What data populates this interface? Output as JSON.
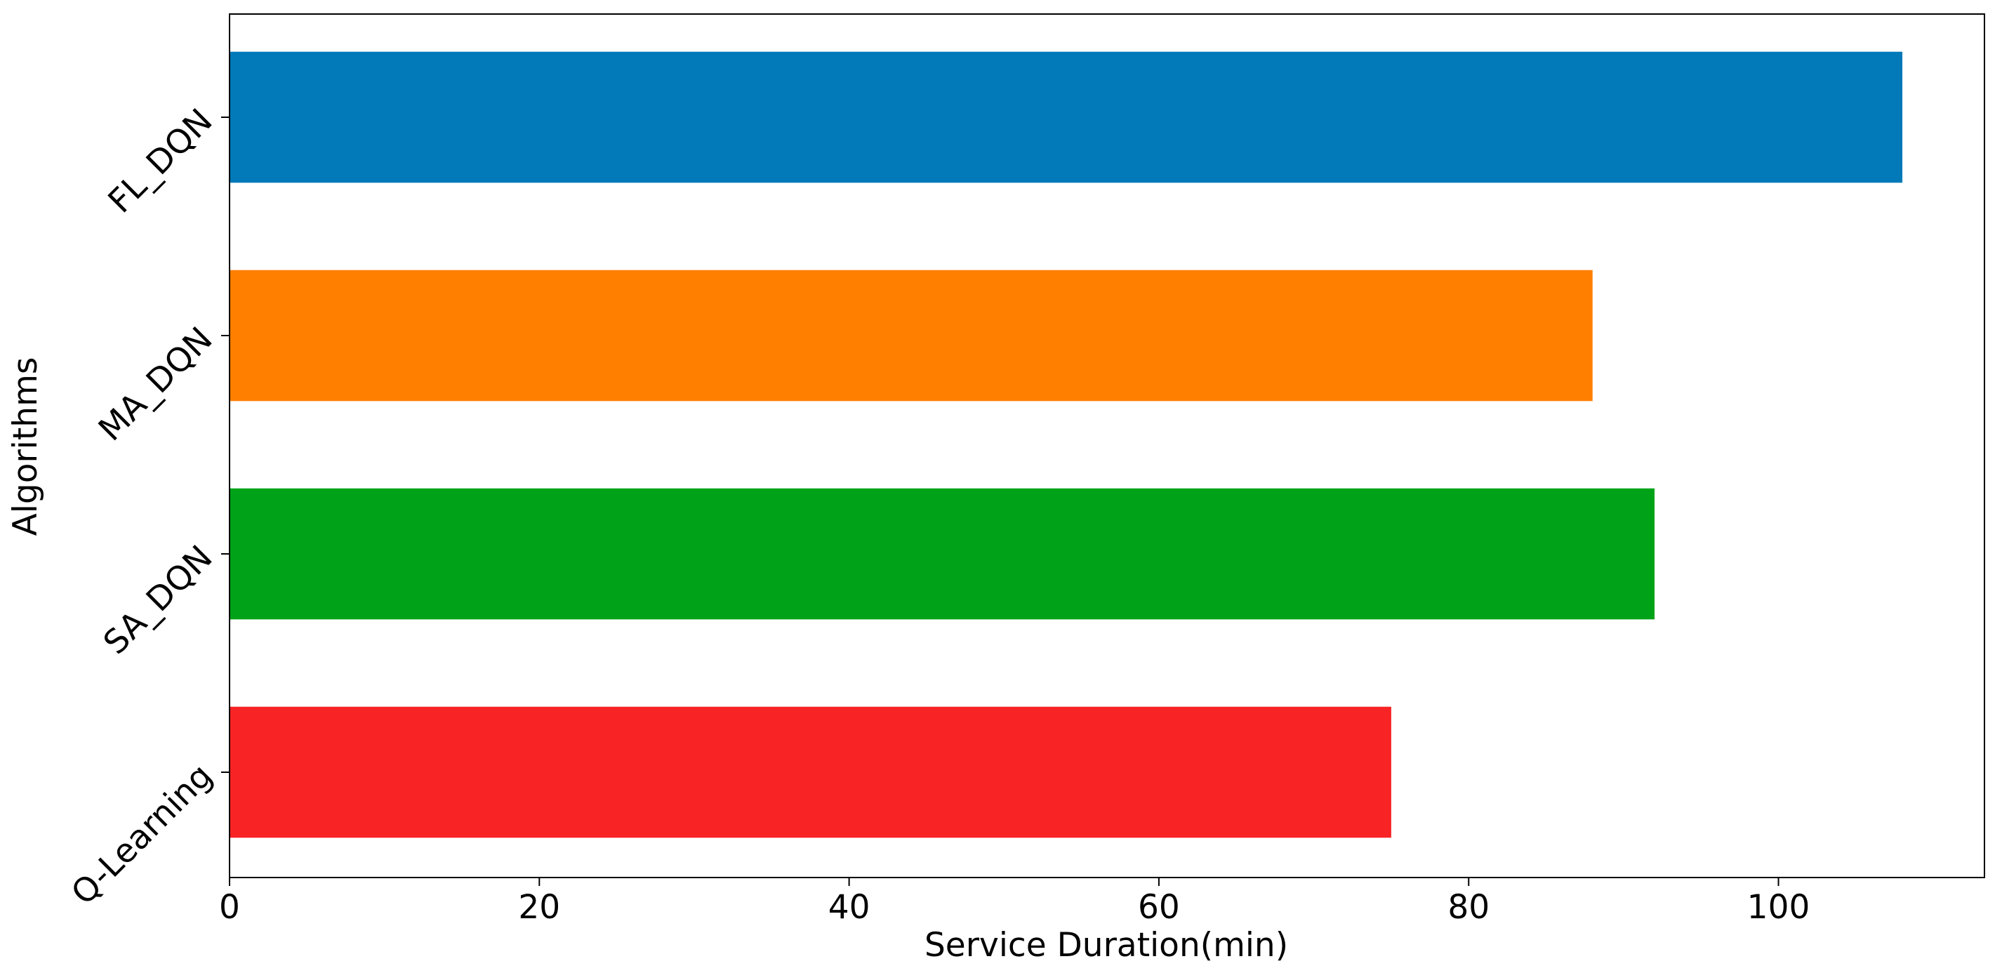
{
  "chart_data": {
    "type": "bar",
    "orientation": "horizontal",
    "xlabel": "Service Duration(min)",
    "ylabel": "Algorithms",
    "categories": [
      "Q-Learning",
      "SA_DQN",
      "MA_DQN",
      "FL_DQN"
    ],
    "values": [
      75,
      92,
      88,
      108
    ],
    "colors": [
      "#f82325",
      "#00a318",
      "#ff7f00",
      "#0279b8"
    ],
    "xlim": [
      0,
      113.3
    ],
    "xticks": [
      0,
      20,
      40,
      60,
      80,
      100
    ],
    "grid": false
  }
}
